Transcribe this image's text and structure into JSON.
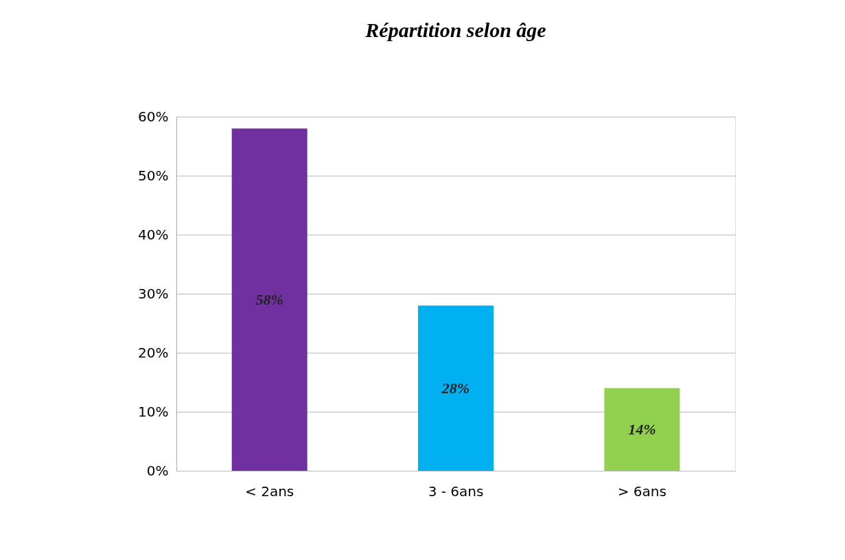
{
  "chart_data": {
    "type": "bar",
    "title": "Répartition selon âge",
    "categories": [
      "< 2ans",
      "3 - 6ans",
      "> 6ans"
    ],
    "values": [
      58,
      28,
      14
    ],
    "value_labels": [
      "58%",
      "28%",
      "14%"
    ],
    "colors": [
      "#7030a0",
      "#00b0f0",
      "#92d050"
    ],
    "ylim": [
      0,
      60
    ],
    "yticks": [
      {
        "value": 0,
        "label": "0%"
      },
      {
        "value": 10,
        "label": "10%"
      },
      {
        "value": 20,
        "label": "20%"
      },
      {
        "value": 30,
        "label": "30%"
      },
      {
        "value": 40,
        "label": "40%"
      },
      {
        "value": 50,
        "label": "50%"
      },
      {
        "value": 60,
        "label": "60%"
      }
    ],
    "grid": "y"
  }
}
